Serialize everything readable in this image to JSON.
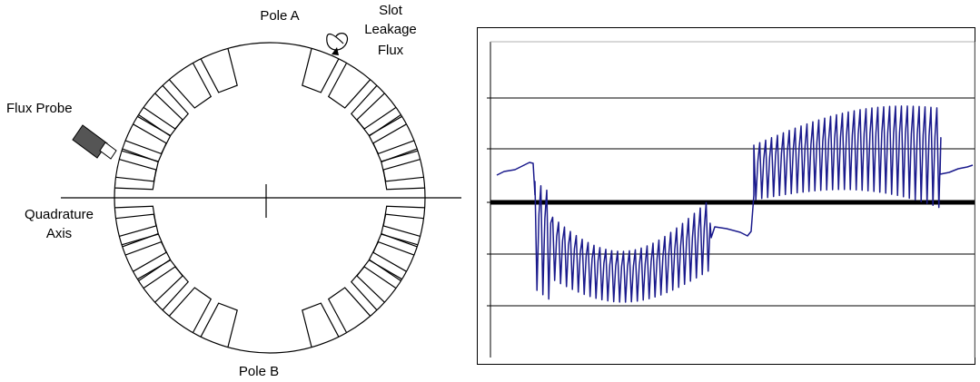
{
  "rotor_diagram": {
    "labels": {
      "pole_a": "Pole A",
      "pole_b": "Pole B",
      "slot_leakage_flux": [
        "Slot",
        "Leakage",
        "Flux"
      ],
      "flux_probe": "Flux Probe",
      "quadrature_axis": [
        "Quadrature",
        "Axis"
      ]
    },
    "icons": [
      "flux-probe-icon",
      "leakage-loop-icon"
    ]
  },
  "waveform": {
    "line_color": "#1a1a8c",
    "zero_line_color": "#000000",
    "grid_color": "#000000"
  }
}
